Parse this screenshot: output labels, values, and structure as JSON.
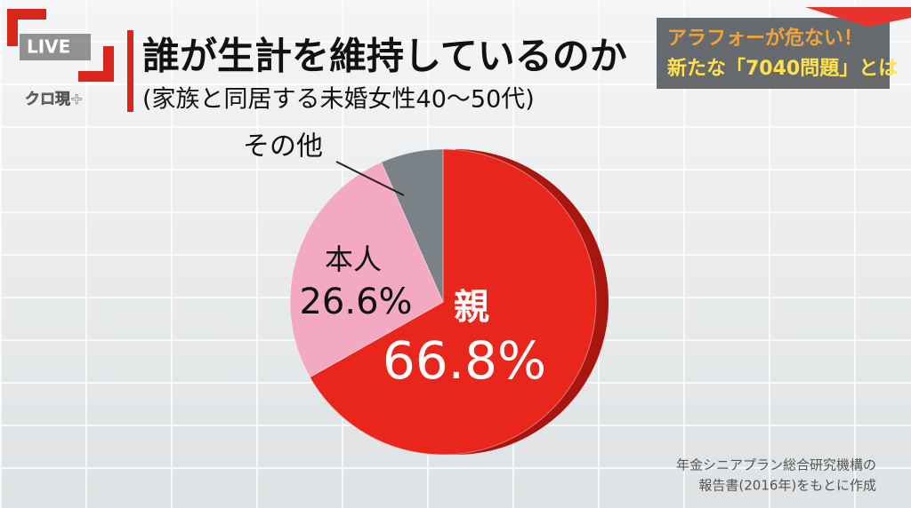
{
  "header": {
    "live": "LIVE",
    "program": "クロ現+"
  },
  "topic": {
    "line1": "アラフォーが危ない！",
    "line2": "新たな「7040問題」とは"
  },
  "chart_data": {
    "type": "pie",
    "title": "誰が生計を維持しているのか",
    "subtitle": "(家族と同居する未婚女性40～50代)",
    "categories": [
      "親",
      "本人",
      "その他"
    ],
    "values": [
      66.8,
      26.6,
      6.6
    ],
    "value_labels": [
      "66.8%",
      "26.6%",
      null
    ],
    "colors": [
      "#e8261c",
      "#f3a9c2",
      "#7a8288"
    ],
    "source": [
      "年金シニアプラン総合研究機構の",
      "報告書(2016年)をもとに作成"
    ]
  }
}
